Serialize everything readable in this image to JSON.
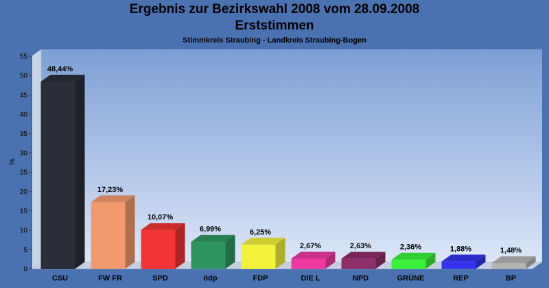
{
  "chart_data": {
    "type": "bar",
    "title": "Ergebnis zur Bezirkswahl 2008 vom 28.09.2008",
    "title_line2": "Erststimmen",
    "subtitle": "Stimmkreis Straubing - Landkreis Straubing-Bogen",
    "ylabel": "%",
    "xlabel": "",
    "ylim": [
      0,
      55
    ],
    "yticks": [
      "0",
      "5",
      "10",
      "15",
      "20",
      "25",
      "30",
      "35",
      "40",
      "45",
      "50",
      "55"
    ],
    "grid": false,
    "legend": "none",
    "categories": [
      "CSU",
      "FW FR",
      "SPD",
      "ödp",
      "FDP",
      "DIE L",
      "NPD",
      "GRÜNE",
      "REP",
      "BP"
    ],
    "values": [
      48.44,
      17.23,
      10.07,
      6.99,
      6.25,
      2.67,
      2.63,
      2.36,
      1.88,
      1.48
    ],
    "data_labels": [
      "48,44%",
      "17,23%",
      "10,07%",
      "6,99%",
      "6,25%",
      "2,67%",
      "2,63%",
      "2,36%",
      "1,88%",
      "1,48%"
    ],
    "colors": [
      "#2a2e38",
      "#f29a6e",
      "#f23434",
      "#2e9560",
      "#f2f23a",
      "#ee3aa0",
      "#8e2e6a",
      "#3af23a",
      "#3434f0",
      "#b4b4b4"
    ]
  },
  "colors": {
    "background": "#4a72b0",
    "plot_top": "#7d9fd5",
    "plot_bottom": "#dce6f8"
  }
}
